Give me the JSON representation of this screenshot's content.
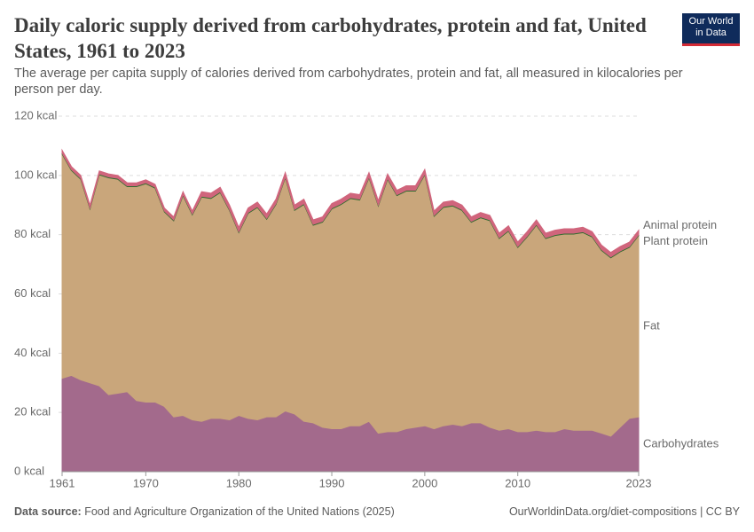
{
  "logo": [
    "Our World",
    "in Data"
  ],
  "footer": {
    "source_label": "Data source:",
    "source": "Food and Agriculture Organization of the United Nations (2025)",
    "link": "OurWorldinData.org/diet-compositions | CC BY"
  },
  "chart_data": {
    "type": "stacked_area",
    "title": "Daily caloric supply derived from carbohydrates, protein and fat, United States, 1961 to 2023",
    "subtitle": "The average per capita supply of calories derived from carbohydrates, protein and fat, all measured in kilocalories per person per day.",
    "x": [
      1961,
      1962,
      1963,
      1964,
      1965,
      1966,
      1967,
      1968,
      1969,
      1970,
      1971,
      1972,
      1973,
      1974,
      1975,
      1976,
      1977,
      1978,
      1979,
      1980,
      1981,
      1982,
      1983,
      1984,
      1985,
      1986,
      1987,
      1988,
      1989,
      1990,
      1991,
      1992,
      1993,
      1994,
      1995,
      1996,
      1997,
      1998,
      1999,
      2000,
      2001,
      2002,
      2003,
      2004,
      2005,
      2006,
      2007,
      2008,
      2009,
      2010,
      2011,
      2012,
      2013,
      2014,
      2015,
      2016,
      2017,
      2018,
      2019,
      2020,
      2021,
      2022,
      2023
    ],
    "xlim": [
      1961,
      2023
    ],
    "xticks": [
      1961,
      1970,
      1980,
      1990,
      2000,
      2010,
      2023
    ],
    "ylim": [
      0,
      120
    ],
    "yticks": [
      {
        "value": 0,
        "label": "0 kcal"
      },
      {
        "value": 20,
        "label": "20 kcal"
      },
      {
        "value": 40,
        "label": "40 kcal"
      },
      {
        "value": 60,
        "label": "60 kcal"
      },
      {
        "value": 80,
        "label": "80 kcal"
      },
      {
        "value": 100,
        "label": "100 kcal"
      },
      {
        "value": 120,
        "label": "120 kcal"
      }
    ],
    "grid": true,
    "series": [
      {
        "name": "Carbohydrates",
        "color": "#a36a8c",
        "label_color": "#8a3d6d",
        "values": [
          31.5,
          32.5,
          31,
          30,
          29,
          26,
          26.5,
          27,
          24,
          23.5,
          23.5,
          22,
          18.5,
          19,
          17.5,
          17,
          18,
          18,
          17.5,
          19,
          18,
          17.5,
          18.5,
          18.5,
          20.5,
          19.5,
          17,
          16.5,
          15,
          14.5,
          14.5,
          15.5,
          15.5,
          17,
          13,
          13.5,
          13.5,
          14.5,
          15,
          15.5,
          14.5,
          15.5,
          16,
          15.5,
          16.5,
          16.5,
          15,
          14,
          14.5,
          13.5,
          13.5,
          14,
          13.5,
          13.5,
          14.5,
          14,
          14,
          14,
          13,
          12,
          15,
          18,
          18.5
        ]
      },
      {
        "name": "Fat",
        "color": "#c9a67b",
        "label_color": "#b08a52",
        "values": [
          75.7,
          69.2,
          67.7,
          58.7,
          71.2,
          73.2,
          72.2,
          69.2,
          72.2,
          73.7,
          72.2,
          65.7,
          66.2,
          74.2,
          69.2,
          75.7,
          74.2,
          76.2,
          70.7,
          61.7,
          69.2,
          71.7,
          66.7,
          71.7,
          78.7,
          68.7,
          73.2,
          66.7,
          69.2,
          74.2,
          75.7,
          76.7,
          76.2,
          82.2,
          76.7,
          85.2,
          79.7,
          80.2,
          79.7,
          84.7,
          71.7,
          73.7,
          73.7,
          72.7,
          67.7,
          69.2,
          69.7,
          64.7,
          66.7,
          62.2,
          65.7,
          69.2,
          65.2,
          66.2,
          65.7,
          66.2,
          66.7,
          65.2,
          61.7,
          60.2,
          59.2,
          57.7,
          61.2
        ]
      },
      {
        "name": "Plant protein",
        "color": "#2e6b2e",
        "label_color": "#1f5c1f",
        "values": [
          0.3,
          0.3,
          0.3,
          0.3,
          0.3,
          0.3,
          0.3,
          0.3,
          0.3,
          0.3,
          0.3,
          0.3,
          0.3,
          0.3,
          0.3,
          0.3,
          0.3,
          0.3,
          0.3,
          0.3,
          0.3,
          0.3,
          0.3,
          0.3,
          0.3,
          0.3,
          0.3,
          0.3,
          0.3,
          0.3,
          0.3,
          0.3,
          0.3,
          0.3,
          0.3,
          0.3,
          0.3,
          0.3,
          0.3,
          0.3,
          0.3,
          0.3,
          0.3,
          0.3,
          0.3,
          0.3,
          0.3,
          0.3,
          0.3,
          0.3,
          0.3,
          0.3,
          0.3,
          0.3,
          0.3,
          0.3,
          0.3,
          0.3,
          0.3,
          0.3,
          0.3,
          0.3,
          0.3
        ]
      },
      {
        "name": "Animal protein",
        "color": "#d0657c",
        "label_color": "#c2405e",
        "values": [
          1,
          1,
          1,
          1,
          1,
          1,
          1,
          1,
          1,
          1,
          1,
          1,
          1,
          1,
          1,
          1.5,
          1.5,
          1.5,
          1.5,
          1.5,
          1.5,
          1.5,
          1.5,
          1.5,
          1.5,
          1.5,
          1.5,
          1.5,
          1.5,
          1.5,
          1.5,
          1.5,
          1.5,
          1.5,
          1.5,
          1.5,
          1.5,
          1.5,
          1.5,
          1.5,
          1.5,
          1.5,
          1.5,
          1.5,
          1.5,
          1.5,
          1.5,
          1.5,
          1.5,
          1.5,
          1.5,
          1.5,
          1.5,
          1.5,
          1.5,
          1.5,
          1.5,
          1.5,
          1.5,
          1.5,
          1.5,
          1.5,
          1.5
        ]
      }
    ]
  }
}
